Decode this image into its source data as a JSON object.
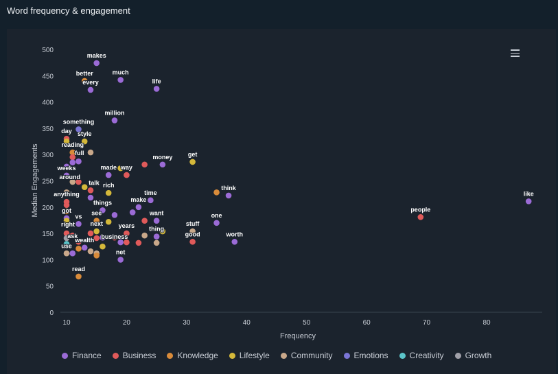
{
  "title": "Word frequency & engagement",
  "chart_data": {
    "type": "scatter",
    "title": "Word frequency & engagement",
    "xlabel": "Frequency",
    "ylabel": "Median Engagements",
    "xlim": [
      10,
      87
    ],
    "ylim": [
      0,
      500
    ],
    "xticks": [
      10,
      20,
      30,
      40,
      50,
      60,
      70,
      80
    ],
    "yticks": [
      0,
      50,
      100,
      150,
      200,
      250,
      300,
      350,
      400,
      450,
      500
    ],
    "legend_position": "bottom",
    "categories": [
      {
        "name": "Finance",
        "color": "#9b6bd6"
      },
      {
        "name": "Business",
        "color": "#e05a5a"
      },
      {
        "name": "Knowledge",
        "color": "#d98b3a"
      },
      {
        "name": "Lifestyle",
        "color": "#d4b83a"
      },
      {
        "name": "Community",
        "color": "#c9a88a"
      },
      {
        "name": "Emotions",
        "color": "#7a75d6"
      },
      {
        "name": "Creativity",
        "color": "#5bc4c9"
      },
      {
        "name": "Growth",
        "color": "#a0a0a8"
      }
    ],
    "points": [
      {
        "x": 15,
        "y": 474,
        "c": "Finance",
        "label": "makes"
      },
      {
        "x": 13,
        "y": 440,
        "c": "Knowledge",
        "label": "better"
      },
      {
        "x": 14,
        "y": 423,
        "c": "Finance",
        "label": "every"
      },
      {
        "x": 19,
        "y": 442,
        "c": "Finance",
        "label": "much"
      },
      {
        "x": 25,
        "y": 425,
        "c": "Finance",
        "label": "life"
      },
      {
        "x": 18,
        "y": 365,
        "c": "Finance",
        "label": "million"
      },
      {
        "x": 12,
        "y": 348,
        "c": "Emotions",
        "label": "something"
      },
      {
        "x": 10,
        "y": 330,
        "c": "Business",
        "label": "day"
      },
      {
        "x": 10,
        "y": 325,
        "c": "Lifestyle",
        "label": ""
      },
      {
        "x": 13,
        "y": 325,
        "c": "Lifestyle",
        "label": "style"
      },
      {
        "x": 11,
        "y": 304,
        "c": "Knowledge",
        "label": "reading"
      },
      {
        "x": 14,
        "y": 304,
        "c": "Community",
        "label": ""
      },
      {
        "x": 11,
        "y": 295,
        "c": "Business",
        "label": "full"
      },
      {
        "x": 11,
        "y": 285,
        "c": "Finance",
        "label": ""
      },
      {
        "x": 12,
        "y": 287,
        "c": "Finance",
        "label": ""
      },
      {
        "x": 10,
        "y": 277,
        "c": "Finance",
        "label": ""
      },
      {
        "x": 10,
        "y": 260,
        "c": "Finance",
        "label": "weeks"
      },
      {
        "x": 26,
        "y": 281,
        "c": "Finance",
        "label": "money"
      },
      {
        "x": 23,
        "y": 281,
        "c": "Business",
        "label": ""
      },
      {
        "x": 17,
        "y": 261,
        "c": "Finance",
        "label": "made"
      },
      {
        "x": 19,
        "y": 274,
        "c": "Lifestyle",
        "label": ""
      },
      {
        "x": 20,
        "y": 261,
        "c": "Business",
        "label": "way"
      },
      {
        "x": 31,
        "y": 286,
        "c": "Lifestyle",
        "label": "get"
      },
      {
        "x": 35,
        "y": 228,
        "c": "Knowledge",
        "label": ""
      },
      {
        "x": 37,
        "y": 222,
        "c": "Finance",
        "label": "think"
      },
      {
        "x": 87,
        "y": 211,
        "c": "Finance",
        "label": "like"
      },
      {
        "x": 69,
        "y": 181,
        "c": "Business",
        "label": "people"
      },
      {
        "x": 11,
        "y": 248,
        "c": "Community",
        "label": "around"
      },
      {
        "x": 12,
        "y": 248,
        "c": "Business",
        "label": ""
      },
      {
        "x": 13,
        "y": 238,
        "c": "Lifestyle",
        "label": ""
      },
      {
        "x": 14,
        "y": 232,
        "c": "Business",
        "label": "talk"
      },
      {
        "x": 14,
        "y": 218,
        "c": "Finance",
        "label": ""
      },
      {
        "x": 10,
        "y": 228,
        "c": "Community",
        "label": ""
      },
      {
        "x": 17,
        "y": 227,
        "c": "Lifestyle",
        "label": "rich"
      },
      {
        "x": 10,
        "y": 210,
        "c": "Business",
        "label": "anything"
      },
      {
        "x": 10,
        "y": 204,
        "c": "Business",
        "label": ""
      },
      {
        "x": 24,
        "y": 213,
        "c": "Finance",
        "label": "time"
      },
      {
        "x": 22,
        "y": 200,
        "c": "Finance",
        "label": "make"
      },
      {
        "x": 21,
        "y": 190,
        "c": "Finance",
        "label": ""
      },
      {
        "x": 16,
        "y": 194,
        "c": "Finance",
        "label": "things"
      },
      {
        "x": 18,
        "y": 185,
        "c": "Finance",
        "label": ""
      },
      {
        "x": 10,
        "y": 192,
        "c": "Knowledge",
        "label": ""
      },
      {
        "x": 10,
        "y": 179,
        "c": "Finance",
        "label": "got"
      },
      {
        "x": 10,
        "y": 174,
        "c": "Lifestyle",
        "label": ""
      },
      {
        "x": 12,
        "y": 168,
        "c": "Finance",
        "label": "vs"
      },
      {
        "x": 15,
        "y": 174,
        "c": "Knowledge",
        "label": "see"
      },
      {
        "x": 17,
        "y": 172,
        "c": "Lifestyle",
        "label": ""
      },
      {
        "x": 25,
        "y": 174,
        "c": "Finance",
        "label": "want"
      },
      {
        "x": 23,
        "y": 174,
        "c": "Business",
        "label": ""
      },
      {
        "x": 20,
        "y": 150,
        "c": "Business",
        "label": "years"
      },
      {
        "x": 10,
        "y": 150,
        "c": "Business",
        "label": "right"
      },
      {
        "x": 10,
        "y": 141,
        "c": "Growth",
        "label": ""
      },
      {
        "x": 11,
        "y": 146,
        "c": "Business",
        "label": "ask"
      },
      {
        "x": 15,
        "y": 154,
        "c": "Lifestyle",
        "label": "next"
      },
      {
        "x": 14,
        "y": 150,
        "c": "Business",
        "label": ""
      },
      {
        "x": 15,
        "y": 141,
        "c": "Business",
        "label": ""
      },
      {
        "x": 16,
        "y": 142,
        "c": "Finance",
        "label": ""
      },
      {
        "x": 18,
        "y": 142,
        "c": "Business",
        "label": "business"
      },
      {
        "x": 19,
        "y": 133,
        "c": "Finance",
        "label": ""
      },
      {
        "x": 20,
        "y": 133,
        "c": "Business",
        "label": ""
      },
      {
        "x": 22,
        "y": 132,
        "c": "Business",
        "label": ""
      },
      {
        "x": 25,
        "y": 132,
        "c": "Community",
        "label": ""
      },
      {
        "x": 26,
        "y": 154,
        "c": "Lifestyle",
        "label": ""
      },
      {
        "x": 25,
        "y": 144,
        "c": "Finance",
        "label": "thing"
      },
      {
        "x": 23,
        "y": 146,
        "c": "Community",
        "label": ""
      },
      {
        "x": 31,
        "y": 154,
        "c": "Community",
        "label": "stuff"
      },
      {
        "x": 31,
        "y": 134,
        "c": "Business",
        "label": "good"
      },
      {
        "x": 35,
        "y": 170,
        "c": "Finance",
        "label": "one"
      },
      {
        "x": 38,
        "y": 134,
        "c": "Finance",
        "label": "worth"
      },
      {
        "x": 13,
        "y": 123,
        "c": "Finance",
        "label": "wealth"
      },
      {
        "x": 12,
        "y": 121,
        "c": "Knowledge",
        "label": ""
      },
      {
        "x": 12,
        "y": 134,
        "c": "Business",
        "label": ""
      },
      {
        "x": 10,
        "y": 130,
        "c": "Creativity",
        "label": "use"
      },
      {
        "x": 11,
        "y": 112,
        "c": "Finance",
        "label": ""
      },
      {
        "x": 10,
        "y": 112,
        "c": "Community",
        "label": ""
      },
      {
        "x": 14,
        "y": 116,
        "c": "Community",
        "label": ""
      },
      {
        "x": 15,
        "y": 112,
        "c": "Community",
        "label": ""
      },
      {
        "x": 15,
        "y": 108,
        "c": "Knowledge",
        "label": ""
      },
      {
        "x": 16,
        "y": 125,
        "c": "Lifestyle",
        "label": ""
      },
      {
        "x": 19,
        "y": 100,
        "c": "Finance",
        "label": "net"
      },
      {
        "x": 12,
        "y": 68,
        "c": "Knowledge",
        "label": "read"
      }
    ]
  }
}
